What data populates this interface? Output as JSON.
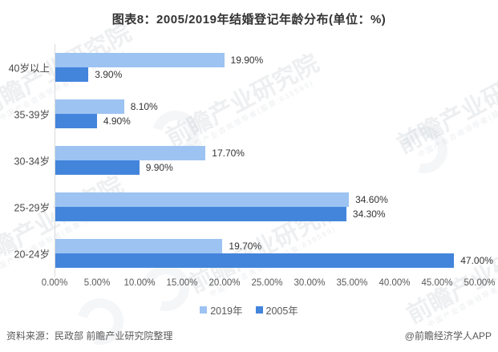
{
  "title": "图表8：2005/2019年结婚登记年龄分布(单位：%)",
  "chart_data": {
    "type": "bar",
    "orientation": "horizontal",
    "title": "图表8：2005/2019年结婚登记年龄分布(单位：%)",
    "unit": "%",
    "categories": [
      "40岁以上",
      "35-39岁",
      "30-34岁",
      "25-29岁",
      "20-24岁"
    ],
    "series": [
      {
        "name": "2019年",
        "color": "#9cc3f2",
        "values": [
          19.9,
          8.1,
          17.7,
          34.6,
          19.7
        ],
        "labels": [
          "19.90%",
          "8.10%",
          "17.70%",
          "34.60%",
          "19.70%"
        ]
      },
      {
        "name": "2005年",
        "color": "#4485dc",
        "values": [
          3.9,
          4.9,
          9.9,
          34.3,
          47.0
        ],
        "labels": [
          "3.90%",
          "4.90%",
          "9.90%",
          "34.30%",
          "47.00%"
        ]
      }
    ],
    "xlim": [
      0,
      50
    ],
    "x_ticks": [
      "0.00%",
      "5.00%",
      "10.00%",
      "15.00%",
      "20.00%",
      "25.00%",
      "30.00%",
      "35.00%",
      "40.00%",
      "45.00%",
      "50.00%"
    ],
    "grid": false,
    "legend_position": "bottom"
  },
  "watermark": {
    "text": "前瞻产业研究院",
    "subtext": "中国产业咨询领导者(股票:839599)"
  },
  "footer": {
    "source": "资料来源：民政部 前瞻产业研究院整理",
    "credit": "@前瞻经济学人APP"
  }
}
